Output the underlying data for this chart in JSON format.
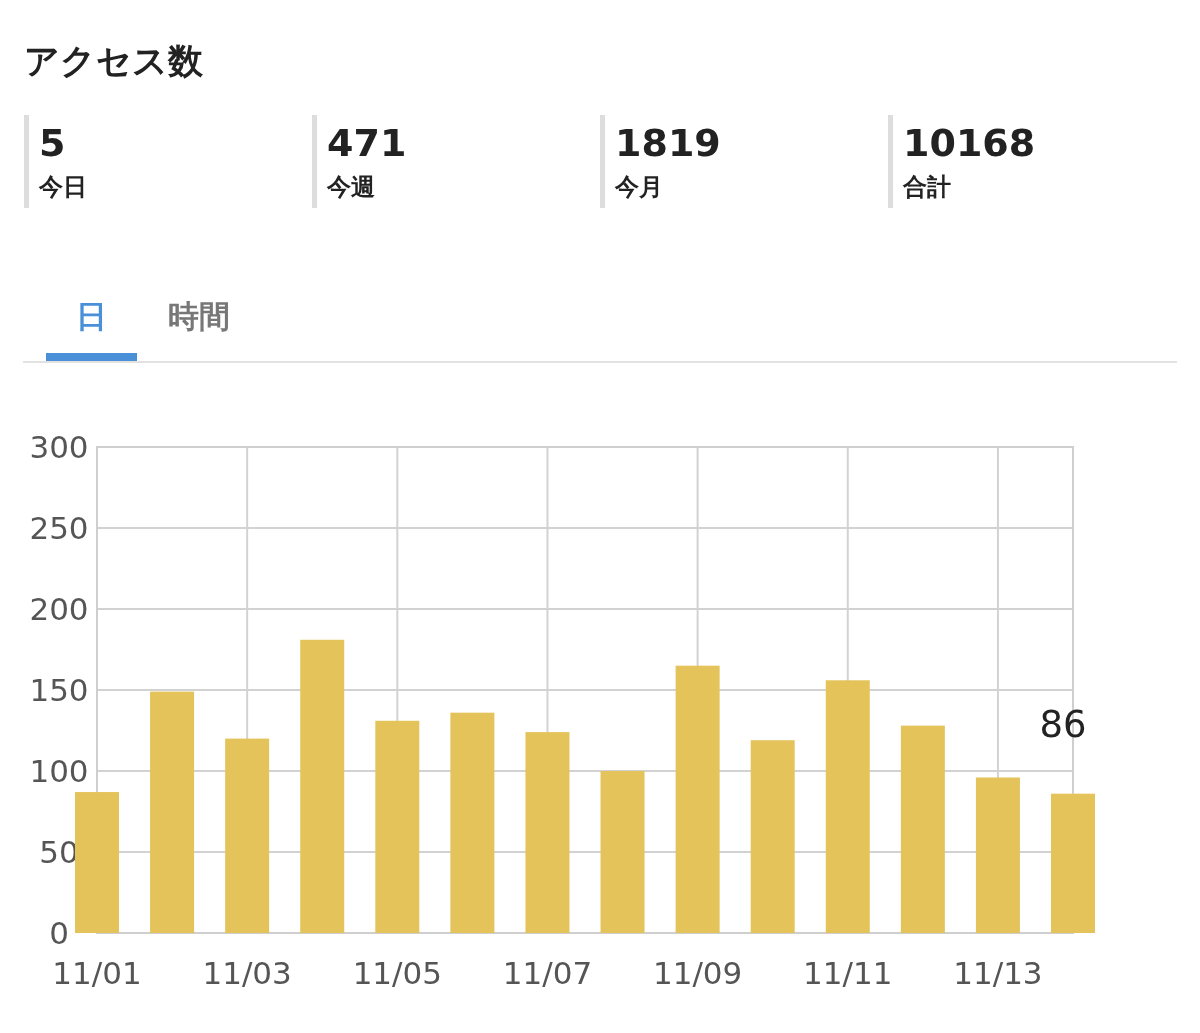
{
  "chart_data": [
    {
      "type": "other",
      "title": "アクセス数",
      "annotations": [
        "5",
        "今日",
        "471",
        "今週",
        "1819",
        "今月",
        "10168",
        "合計",
        "日",
        "時間"
      ]
    },
    {
      "type": "bar",
      "categories": [
        "11/01",
        null,
        "11/03",
        null,
        "11/05",
        null,
        "11/07",
        null,
        "11/09",
        null,
        "11/11",
        null,
        "11/13",
        null
      ],
      "values": [
        87,
        149,
        120,
        181,
        131,
        136,
        124,
        100,
        165,
        119,
        156,
        128,
        96,
        86
      ],
      "color": "#e4c35a",
      "ylim": [
        0,
        300
      ],
      "yticks": [
        0,
        50,
        100,
        150,
        200,
        250,
        300
      ],
      "grid": true,
      "value_labels": [
        null,
        null,
        null,
        null,
        null,
        null,
        null,
        null,
        null,
        null,
        null,
        null,
        null,
        "86"
      ]
    }
  ]
}
